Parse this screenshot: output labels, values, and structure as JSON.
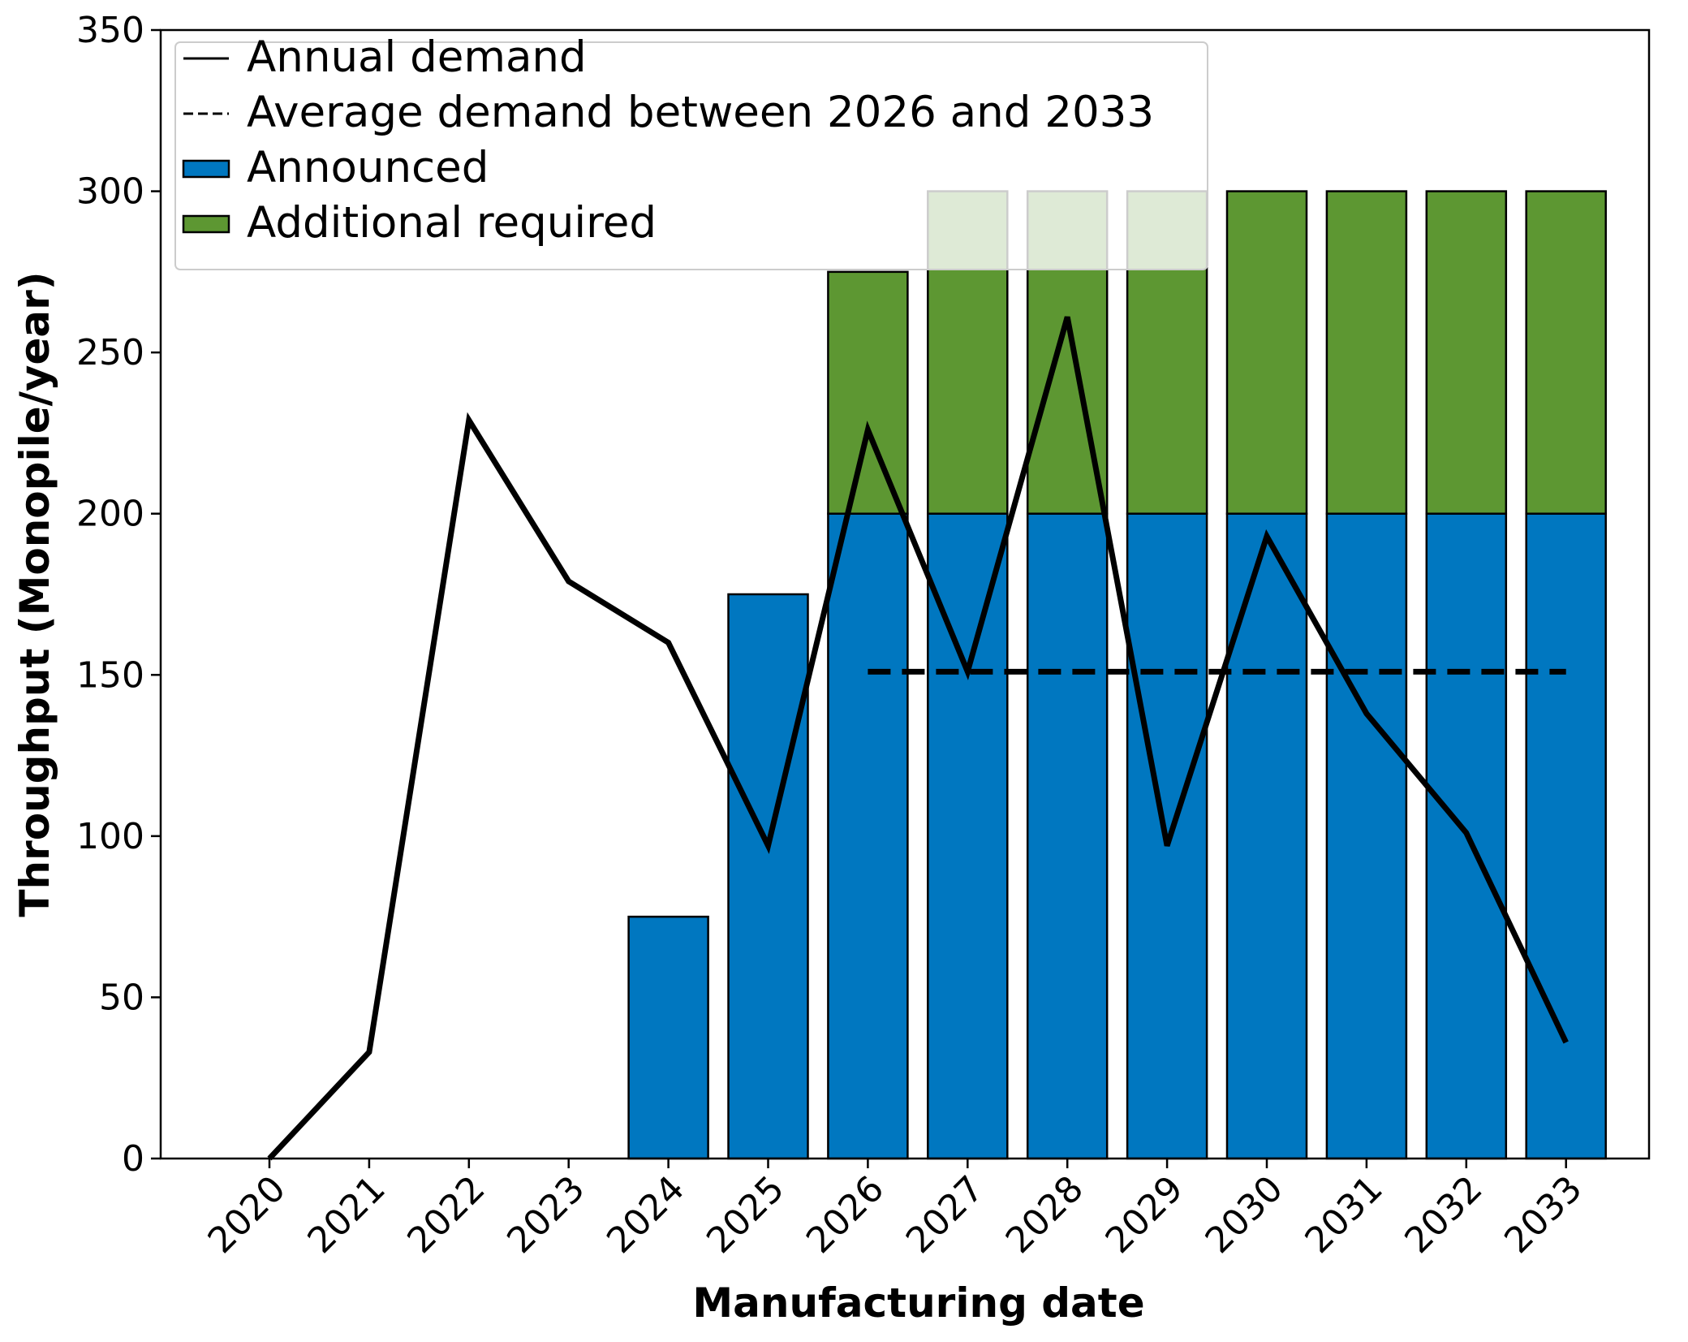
{
  "chart_data": {
    "type": "bar",
    "xlabel": "Manufacturing date",
    "ylabel": "Throughput (Monopile/year)",
    "ylim": [
      0,
      350
    ],
    "y_ticks": [
      0,
      50,
      100,
      150,
      200,
      250,
      300,
      350
    ],
    "categories": [
      "2020",
      "2021",
      "2022",
      "2023",
      "2024",
      "2025",
      "2026",
      "2027",
      "2028",
      "2029",
      "2030",
      "2031",
      "2032",
      "2033"
    ],
    "stacked": true,
    "series": [
      {
        "name": "Announced",
        "kind": "bar",
        "color": "#0077c0",
        "values": [
          0,
          0,
          0,
          0,
          75,
          175,
          200,
          200,
          200,
          200,
          200,
          200,
          200,
          200
        ]
      },
      {
        "name": "Additional required",
        "kind": "bar",
        "color": "#5d9732",
        "values": [
          0,
          0,
          0,
          0,
          0,
          0,
          75,
          100,
          100,
          100,
          100,
          100,
          100,
          100
        ]
      },
      {
        "name": "Annual demand",
        "kind": "line",
        "style": "solid",
        "color": "#000000",
        "values": [
          0,
          33,
          229,
          179,
          160,
          97,
          226,
          151,
          261,
          97,
          193,
          138,
          101,
          36
        ]
      },
      {
        "name": "Average demand between 2026 and 2033",
        "kind": "line",
        "style": "dashed",
        "color": "#000000",
        "x_range": [
          "2026",
          "2033"
        ],
        "value": 151
      }
    ],
    "legend": {
      "placement": "top-left",
      "entries": [
        {
          "label": "Annual demand",
          "marker": "solid-line"
        },
        {
          "label": "Average demand between 2026 and 2033",
          "marker": "dashed-line"
        },
        {
          "label": "Announced",
          "marker": "patch",
          "color": "#0077c0"
        },
        {
          "label": "Additional required",
          "marker": "patch",
          "color": "#5d9732"
        }
      ]
    },
    "grid": false
  }
}
